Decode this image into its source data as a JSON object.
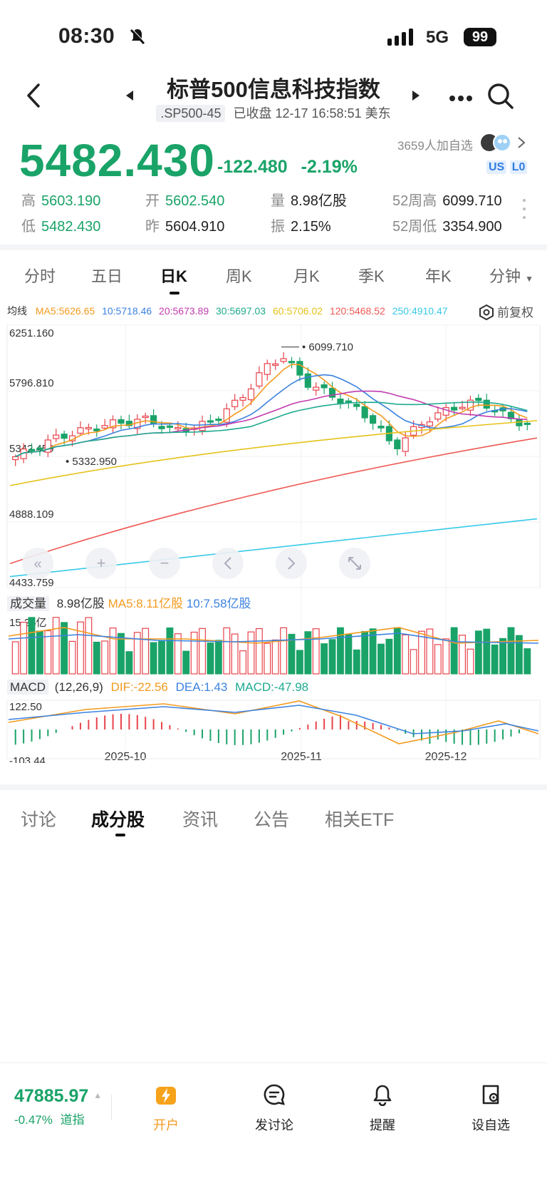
{
  "status_bar": {
    "time": "08:30",
    "network": "5G",
    "battery": "99"
  },
  "header": {
    "title": "标普500信息科技指数",
    "code": ".SP500-45",
    "status": "已收盘 12-17 16:58:51 美东",
    "watchers": "3659人加自选"
  },
  "quote": {
    "price": "5482.430",
    "change": "-122.480",
    "change_pct": "-2.19%",
    "badges": [
      "US",
      "L0"
    ],
    "stats": [
      {
        "label": "高",
        "value": "5603.190",
        "color": "green"
      },
      {
        "label": "开",
        "value": "5602.540",
        "color": "green"
      },
      {
        "label": "量",
        "value": "8.98亿股",
        "color": "dark"
      },
      {
        "label": "52周高",
        "value": "6099.710",
        "color": "dark"
      },
      {
        "label": "低",
        "value": "5482.430",
        "color": "green"
      },
      {
        "label": "昨",
        "value": "5604.910",
        "color": "dark"
      },
      {
        "label": "振",
        "value": "2.15%",
        "color": "dark"
      },
      {
        "label": "52周低",
        "value": "3354.900",
        "color": "dark"
      }
    ]
  },
  "chart_tabs": [
    "分时",
    "五日",
    "日K",
    "周K",
    "月K",
    "季K",
    "年K",
    "分钟"
  ],
  "active_chart_tab": 2,
  "ma_legend": {
    "title": "均线",
    "items": [
      {
        "text": "MA5:5626.65",
        "color": "#f39a1e"
      },
      {
        "text": "10:5718.46",
        "color": "#3c82e0"
      },
      {
        "text": "20:5673.89",
        "color": "#c23bb0"
      },
      {
        "text": "30:5697.03",
        "color": "#1eaa8f"
      },
      {
        "text": "60:5706.02",
        "color": "#e6c21a"
      },
      {
        "text": "120:5468.52",
        "color": "#ee5a55"
      },
      {
        "text": "250:4910.47",
        "color": "#37c9e8"
      }
    ],
    "adjust": "前复权"
  },
  "chart_data": {
    "type": "candlestick",
    "y_ticks": [
      "6251.160",
      "5796.810",
      "5342.459",
      "4888.109",
      "4433.759"
    ],
    "ylim": [
      4433.759,
      6251.16
    ],
    "x_labels": [
      "2025-10",
      "2025-11",
      "2025-12"
    ],
    "annotations": [
      {
        "text": "6099.710",
        "label": "high"
      },
      {
        "text": "5332.950",
        "label": "low"
      }
    ],
    "volume": {
      "title": "成交量",
      "current": "8.98亿股",
      "ma5": "MA5:8.11亿股",
      "ma10": "10:7.58亿股",
      "max_label": "15.25亿"
    },
    "macd": {
      "title": "MACD",
      "params": "(12,26,9)",
      "dif": "DIF:-22.56",
      "dea": "DEA:1.43",
      "macd": "MACD:-47.98",
      "y_ticks": [
        "122.50",
        "-103.44"
      ]
    }
  },
  "bottom_tabs": [
    "讨论",
    "成分股",
    "资讯",
    "公告",
    "相关ETF"
  ],
  "active_bottom_tab": 1,
  "footer": {
    "index_value": "47885.97",
    "index_change": "-0.47%",
    "index_name": "道指",
    "actions": [
      "开户",
      "发讨论",
      "提醒",
      "设自选"
    ]
  },
  "colors": {
    "up": "#e8434b",
    "down": "#1aa368"
  }
}
